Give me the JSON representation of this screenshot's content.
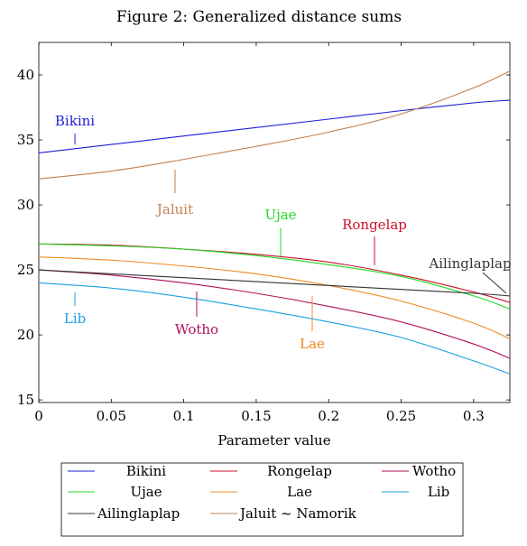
{
  "chart_data": {
    "type": "line",
    "title": "Figure 2: Generalized distance sums",
    "xlabel": "Parameter value",
    "ylabel": "",
    "xlim": [
      0,
      0.325
    ],
    "ylim": [
      14.8,
      42.5
    ],
    "xticks": [
      0,
      0.05,
      0.1,
      0.15,
      0.2,
      0.25,
      0.3
    ],
    "xtick_labels": [
      "0",
      "0.05",
      "0.1",
      "0.15",
      "0.2",
      "0.25",
      "0.3"
    ],
    "yticks": [
      15,
      20,
      25,
      30,
      35,
      40
    ],
    "ytick_labels": [
      "15",
      "20",
      "25",
      "30",
      "35",
      "40"
    ],
    "grid": false,
    "legend_position": "bottom",
    "series": [
      {
        "name": "Bikini",
        "color": "#1f1fd6",
        "x": [
          0,
          0.05,
          0.1,
          0.15,
          0.2,
          0.25,
          0.3,
          0.325
        ],
        "y": [
          34.0,
          34.65,
          35.3,
          35.95,
          36.6,
          37.25,
          37.85,
          38.05
        ]
      },
      {
        "name": "Rongelap",
        "color": "#c8102e",
        "x": [
          0,
          0.05,
          0.1,
          0.15,
          0.2,
          0.25,
          0.3,
          0.325
        ],
        "y": [
          27.0,
          26.9,
          26.6,
          26.2,
          25.6,
          24.6,
          23.3,
          22.5
        ]
      },
      {
        "name": "Wotho",
        "color": "#b0105a",
        "x": [
          0,
          0.05,
          0.1,
          0.15,
          0.2,
          0.25,
          0.3,
          0.325
        ],
        "y": [
          25.0,
          24.6,
          24.0,
          23.2,
          22.2,
          21.0,
          19.3,
          18.2
        ]
      },
      {
        "name": "Ujae",
        "color": "#22d822",
        "x": [
          0,
          0.05,
          0.1,
          0.15,
          0.2,
          0.25,
          0.3,
          0.325
        ],
        "y": [
          27.0,
          26.85,
          26.6,
          26.1,
          25.4,
          24.5,
          23.0,
          22.0
        ]
      },
      {
        "name": "Lae",
        "color": "#f08a24",
        "x": [
          0,
          0.05,
          0.1,
          0.15,
          0.2,
          0.25,
          0.3,
          0.325
        ],
        "y": [
          26.0,
          25.75,
          25.3,
          24.7,
          23.8,
          22.6,
          20.9,
          19.7
        ]
      },
      {
        "name": "Lib",
        "color": "#1aa0e0",
        "x": [
          0,
          0.05,
          0.1,
          0.15,
          0.2,
          0.25,
          0.3,
          0.325
        ],
        "y": [
          24.0,
          23.6,
          22.9,
          22.0,
          21.0,
          19.8,
          18.0,
          17.0
        ]
      },
      {
        "name": "Ailinglaplap",
        "color": "#333333",
        "x": [
          0,
          0.05,
          0.1,
          0.15,
          0.2,
          0.25,
          0.3,
          0.325
        ],
        "y": [
          25.0,
          24.7,
          24.4,
          24.1,
          23.8,
          23.5,
          23.2,
          23.0
        ]
      },
      {
        "name": "Jaluit ~ Namorik",
        "color": "#c08050",
        "x": [
          0,
          0.05,
          0.1,
          0.15,
          0.2,
          0.25,
          0.3,
          0.325
        ],
        "y": [
          32.0,
          32.6,
          33.5,
          34.5,
          35.6,
          37.0,
          39.0,
          40.3
        ]
      }
    ],
    "annotations": [
      {
        "text": "Bikini",
        "color": "#1f1fd6"
      },
      {
        "text": "Jaluit",
        "color": "#c08050"
      },
      {
        "text": "Ujae",
        "color": "#22d822"
      },
      {
        "text": "Rongelap",
        "color": "#c8102e"
      },
      {
        "text": "Ailinglaplap",
        "color": "#333333"
      },
      {
        "text": "Lib",
        "color": "#1aa0e0"
      },
      {
        "text": "Wotho",
        "color": "#b0105a"
      },
      {
        "text": "Lae",
        "color": "#f08a24"
      }
    ]
  }
}
